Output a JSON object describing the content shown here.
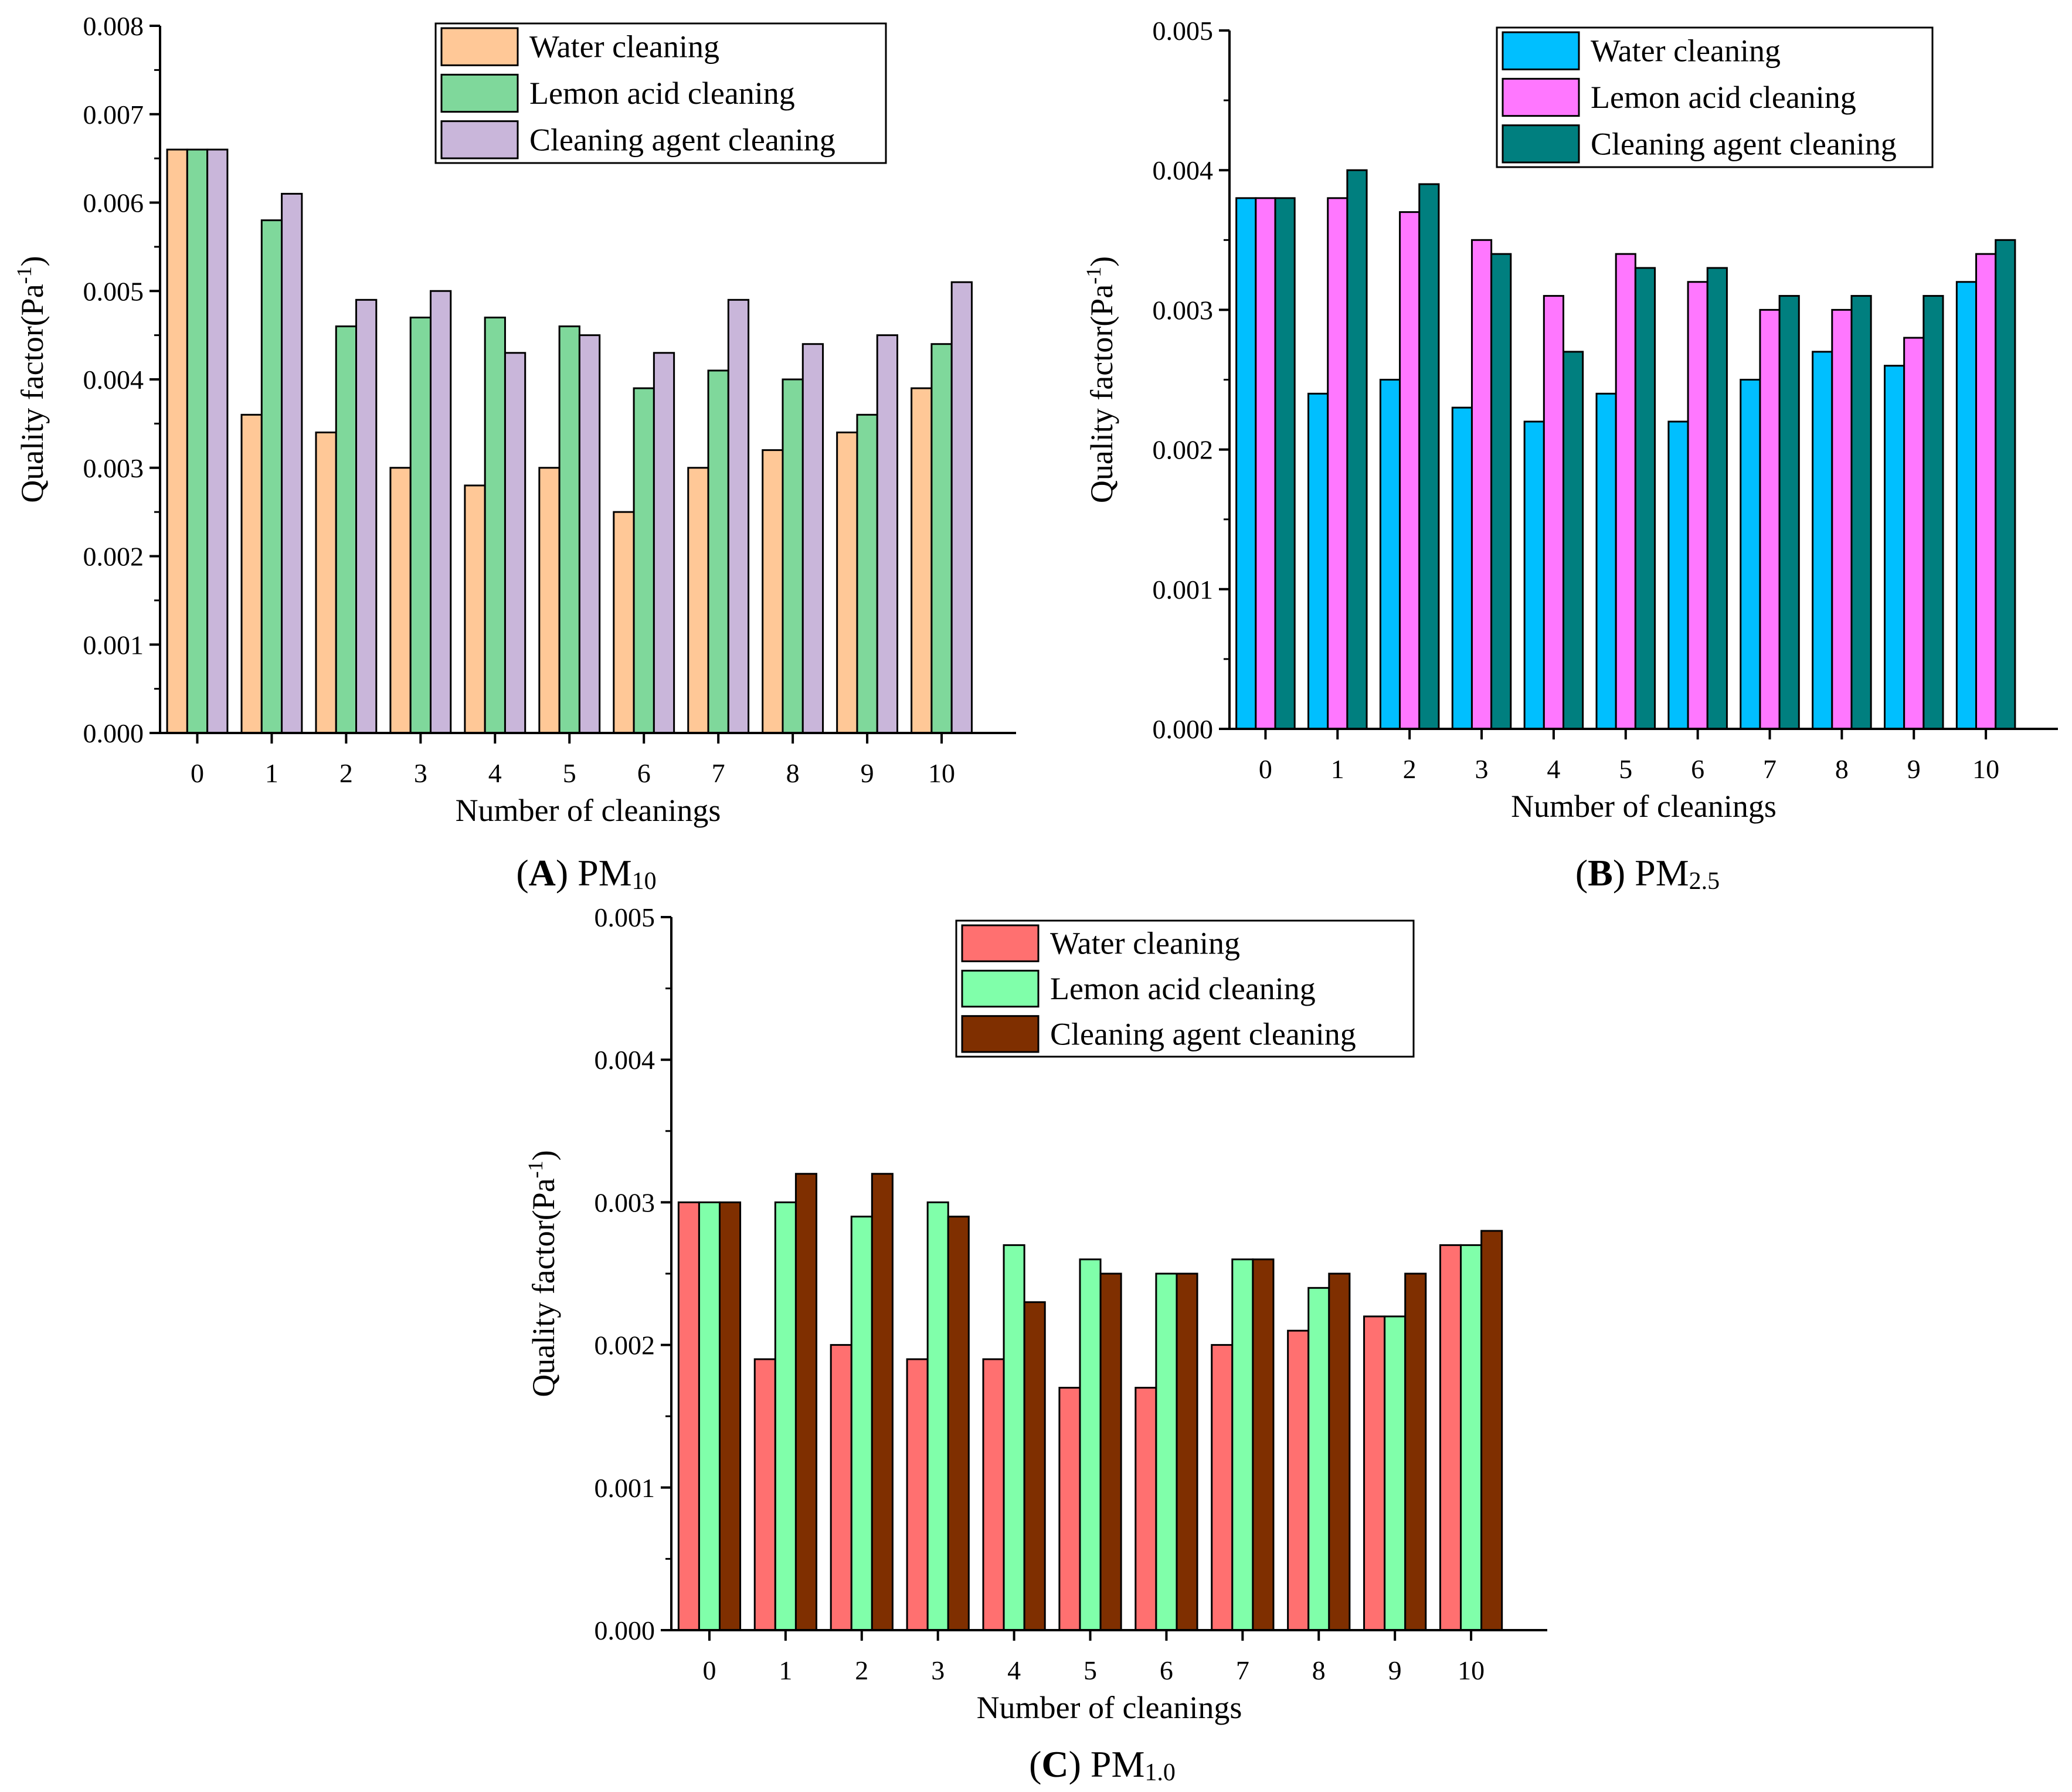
{
  "chart_data": [
    {
      "type": "bar",
      "panel": "A",
      "caption": {
        "letter": "A",
        "text": "PM",
        "sub": "10"
      },
      "title": "",
      "xlabel": "Number of cleanings",
      "ylabel": "Quality factor(Pa",
      "ylabel_sup": "-1",
      "ylabel_close": ")",
      "ylim": [
        0,
        0.008
      ],
      "yticks": [
        "0.000",
        "0.001",
        "0.002",
        "0.003",
        "0.004",
        "0.005",
        "0.006",
        "0.007",
        "0.008"
      ],
      "categories": [
        "0",
        "1",
        "2",
        "3",
        "4",
        "5",
        "6",
        "7",
        "8",
        "9",
        "10"
      ],
      "legend_position": "top-right",
      "series": [
        {
          "name": "Water cleaning",
          "color": "#FFC897",
          "values": [
            0.0066,
            0.0036,
            0.0034,
            0.003,
            0.0028,
            0.003,
            0.0025,
            0.003,
            0.0032,
            0.0034,
            0.0039
          ]
        },
        {
          "name": "Lemon acid cleaning",
          "color": "#7FD89B",
          "values": [
            0.0066,
            0.0058,
            0.0046,
            0.0047,
            0.0047,
            0.0046,
            0.0039,
            0.0041,
            0.004,
            0.0036,
            0.0044
          ]
        },
        {
          "name": "Cleaning agent cleaning",
          "color": "#C9B6DA",
          "values": [
            0.0066,
            0.0061,
            0.0049,
            0.005,
            0.0043,
            0.0045,
            0.0043,
            0.0049,
            0.0044,
            0.0045,
            0.0051
          ]
        }
      ]
    },
    {
      "type": "bar",
      "panel": "B",
      "caption": {
        "letter": "B",
        "text": "PM",
        "sub": "2.5"
      },
      "title": "",
      "xlabel": "Number of cleanings",
      "ylabel": "Quality factor(Pa",
      "ylabel_sup": "-1",
      "ylabel_close": ")",
      "ylim": [
        0,
        0.005
      ],
      "yticks": [
        "0.000",
        "0.001",
        "0.002",
        "0.003",
        "0.004",
        "0.005"
      ],
      "categories": [
        "0",
        "1",
        "2",
        "3",
        "4",
        "5",
        "6",
        "7",
        "8",
        "9",
        "10"
      ],
      "legend_position": "top-right",
      "series": [
        {
          "name": "Water cleaning",
          "color": "#00BFFF",
          "values": [
            0.0038,
            0.0024,
            0.0025,
            0.0023,
            0.0022,
            0.0024,
            0.0022,
            0.0025,
            0.0027,
            0.0026,
            0.0032
          ]
        },
        {
          "name": "Lemon acid cleaning",
          "color": "#FF77FF",
          "values": [
            0.0038,
            0.0038,
            0.0037,
            0.0035,
            0.0031,
            0.0034,
            0.0032,
            0.003,
            0.003,
            0.0028,
            0.0034
          ]
        },
        {
          "name": "Cleaning agent cleaning",
          "color": "#007F7F",
          "values": [
            0.0038,
            0.004,
            0.0039,
            0.0034,
            0.0027,
            0.0033,
            0.0033,
            0.0031,
            0.0031,
            0.0031,
            0.0035
          ]
        }
      ]
    },
    {
      "type": "bar",
      "panel": "C",
      "caption": {
        "letter": "C",
        "text": "PM",
        "sub": "1.0"
      },
      "title": "",
      "xlabel": "Number of cleanings",
      "ylabel": "Quality factor(Pa",
      "ylabel_sup": "-1",
      "ylabel_close": ")",
      "ylim": [
        0,
        0.005
      ],
      "yticks": [
        "0.000",
        "0.001",
        "0.002",
        "0.003",
        "0.004",
        "0.005"
      ],
      "categories": [
        "0",
        "1",
        "2",
        "3",
        "4",
        "5",
        "6",
        "7",
        "8",
        "9",
        "10"
      ],
      "legend_position": "top-right",
      "series": [
        {
          "name": "Water cleaning",
          "color": "#FF7070",
          "values": [
            0.003,
            0.0019,
            0.002,
            0.0019,
            0.0019,
            0.0017,
            0.0017,
            0.002,
            0.0021,
            0.0022,
            0.0027
          ]
        },
        {
          "name": "Lemon acid cleaning",
          "color": "#80FFAA",
          "values": [
            0.003,
            0.003,
            0.0029,
            0.003,
            0.0027,
            0.0026,
            0.0025,
            0.0026,
            0.0024,
            0.0022,
            0.0027
          ]
        },
        {
          "name": "Cleaning agent cleaning",
          "color": "#7F2F00",
          "values": [
            0.003,
            0.0032,
            0.0032,
            0.0029,
            0.0023,
            0.0025,
            0.0025,
            0.0026,
            0.0025,
            0.0025,
            0.0028
          ]
        }
      ]
    }
  ]
}
